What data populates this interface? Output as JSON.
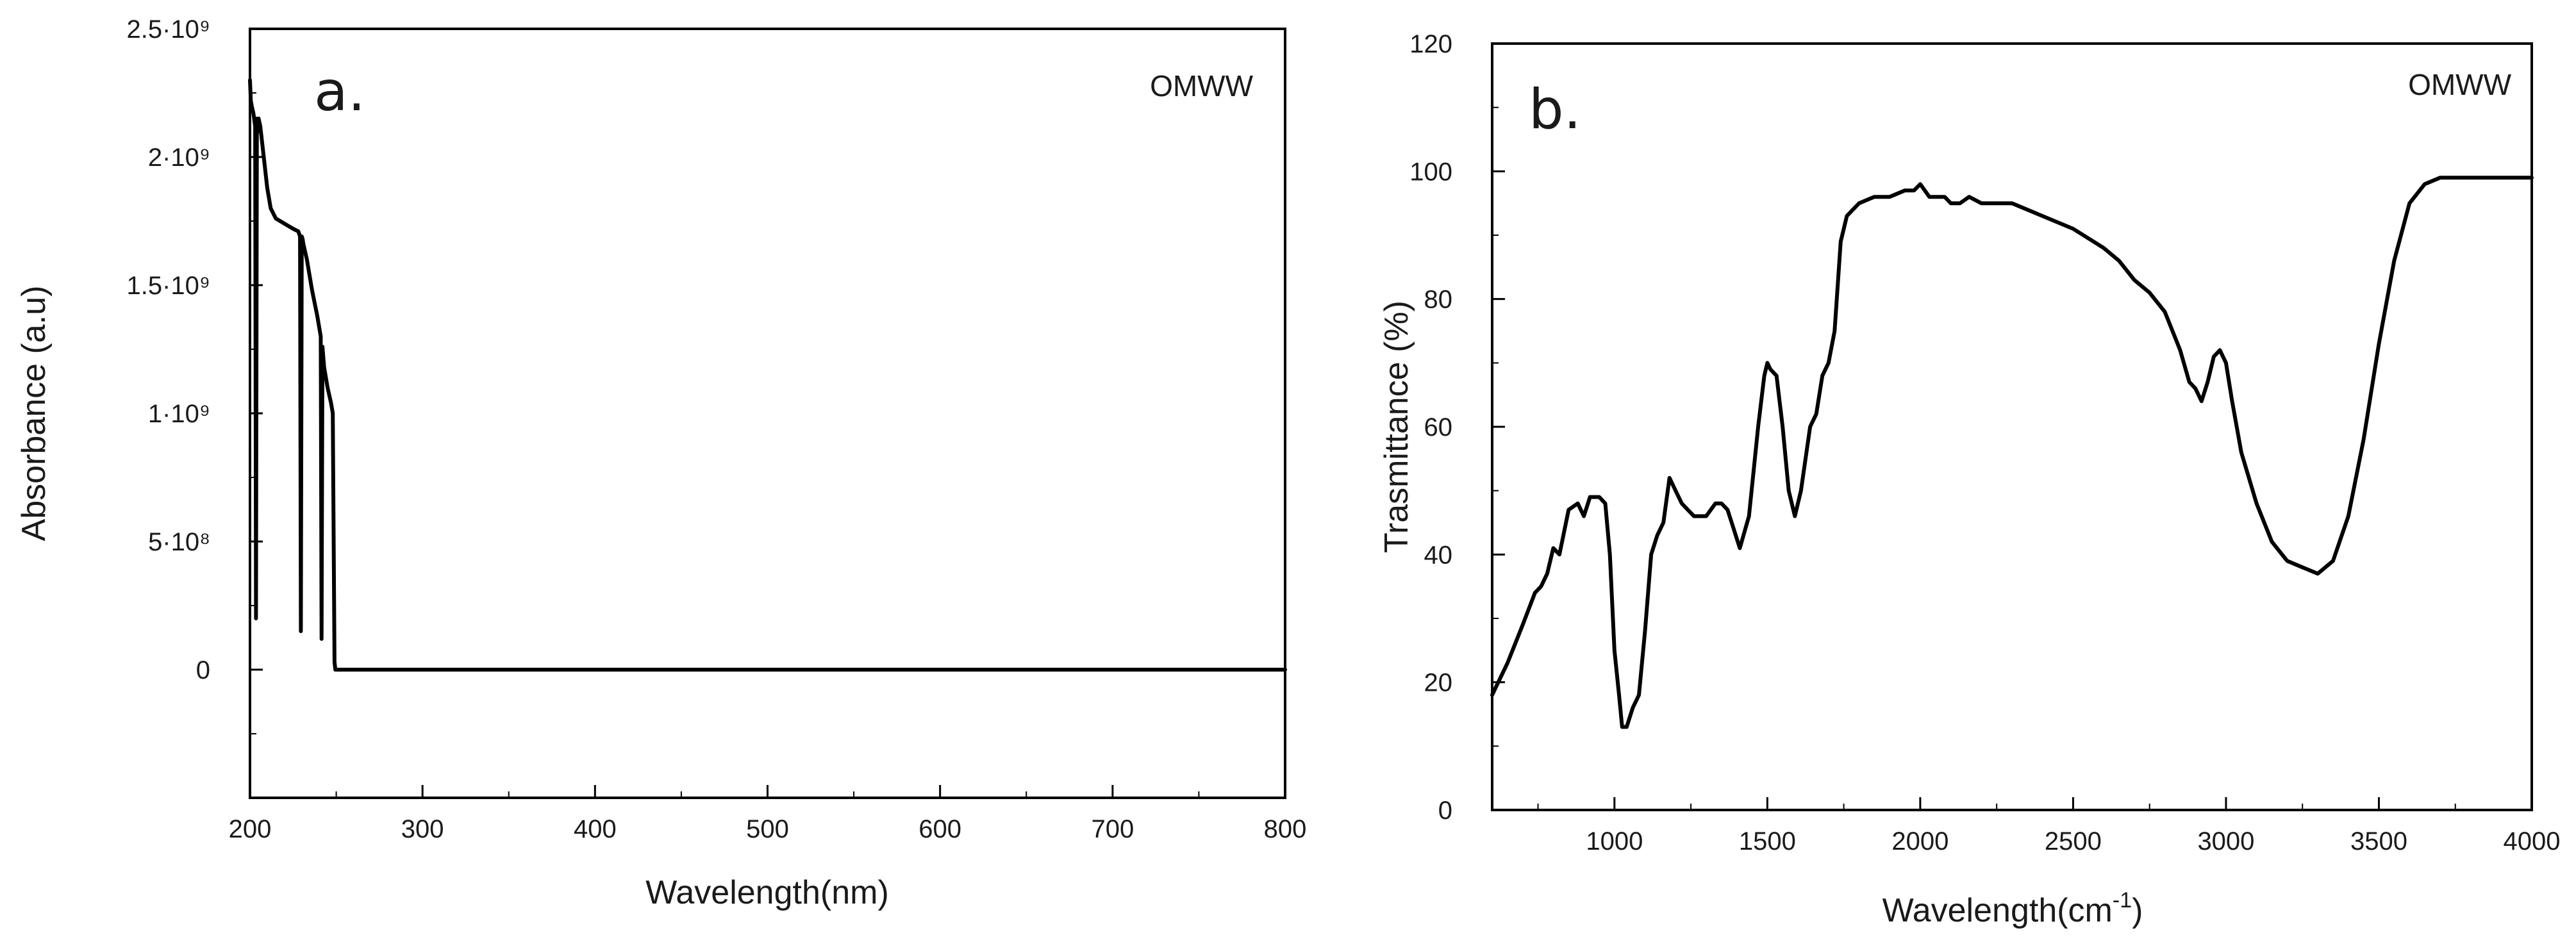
{
  "chart_data": [
    {
      "type": "line",
      "panel_label": "a.",
      "legend": "OMWW",
      "xlabel": "Wavelength(nm)",
      "ylabel": "Absorbance (a.u)",
      "xlim": [
        200,
        800
      ],
      "ylim": [
        -500000000,
        2500000000
      ],
      "grid": false,
      "x_ticks": [
        {
          "value": 200,
          "label": "200"
        },
        {
          "value": 300,
          "label": "300"
        },
        {
          "value": 400,
          "label": "400"
        },
        {
          "value": 500,
          "label": "500"
        },
        {
          "value": 600,
          "label": "600"
        },
        {
          "value": 700,
          "label": "700"
        },
        {
          "value": 800,
          "label": "800"
        }
      ],
      "y_ticks": [
        {
          "value": 0,
          "label": "0"
        },
        {
          "value": 500000000,
          "label": "5·10⁸"
        },
        {
          "value": 1000000000,
          "label": "1·10⁹"
        },
        {
          "value": 1500000000,
          "label": "1.5·10⁹"
        },
        {
          "value": 2000000000,
          "label": "2·10⁹"
        },
        {
          "value": 2500000000,
          "label": "2.5·10⁹"
        }
      ],
      "series": [
        {
          "name": "OMWW",
          "x": [
            200,
            200.5,
            201,
            202,
            203,
            203.5,
            204,
            204.5,
            205,
            206,
            208,
            210,
            212,
            215,
            220,
            225,
            228,
            229,
            229.5,
            230,
            230.5,
            231,
            233,
            236,
            239,
            241,
            241.5,
            242,
            242.5,
            243,
            245,
            247,
            248,
            249,
            249.5,
            250,
            260,
            300,
            400,
            500,
            600,
            700,
            800
          ],
          "y": [
            2300000000,
            2220000000,
            2200000000,
            2170000000,
            2120000000,
            200000000,
            2150000000,
            2100000000,
            2150000000,
            2120000000,
            2000000000,
            1880000000,
            1800000000,
            1760000000,
            1740000000,
            1720000000,
            1710000000,
            1690000000,
            150000000,
            1690000000,
            1680000000,
            1660000000,
            1600000000,
            1480000000,
            1380000000,
            1300000000,
            120000000,
            1260000000,
            1220000000,
            1180000000,
            1100000000,
            1040000000,
            1000000000,
            30000000,
            0,
            0,
            0,
            0,
            0,
            0,
            0,
            0,
            0
          ]
        }
      ]
    },
    {
      "type": "line",
      "panel_label": "b.",
      "legend": "OMWW",
      "xlabel": "Wavelength(cm",
      "xlabel_sup": "-1",
      "xlabel_close": ")",
      "ylabel": "Trasmittance (%)",
      "xlim": [
        600,
        4000
      ],
      "ylim": [
        0,
        120
      ],
      "grid": false,
      "x_ticks": [
        {
          "value": 1000,
          "label": "1000"
        },
        {
          "value": 1500,
          "label": "1500"
        },
        {
          "value": 2000,
          "label": "2000"
        },
        {
          "value": 2500,
          "label": "2500"
        },
        {
          "value": 3000,
          "label": "3000"
        },
        {
          "value": 3500,
          "label": "3500"
        },
        {
          "value": 4000,
          "label": "4000"
        }
      ],
      "y_ticks": [
        {
          "value": 0,
          "label": "0"
        },
        {
          "value": 20,
          "label": "20"
        },
        {
          "value": 40,
          "label": "40"
        },
        {
          "value": 60,
          "label": "60"
        },
        {
          "value": 80,
          "label": "80"
        },
        {
          "value": 100,
          "label": "100"
        },
        {
          "value": 120,
          "label": "120"
        }
      ],
      "series": [
        {
          "name": "OMWW",
          "x": [
            600,
            620,
            650,
            700,
            740,
            760,
            780,
            800,
            820,
            850,
            880,
            900,
            920,
            950,
            970,
            985,
            1000,
            1015,
            1025,
            1040,
            1060,
            1080,
            1100,
            1120,
            1140,
            1160,
            1180,
            1200,
            1220,
            1240,
            1260,
            1300,
            1330,
            1350,
            1370,
            1390,
            1410,
            1440,
            1470,
            1490,
            1500,
            1510,
            1530,
            1550,
            1570,
            1590,
            1610,
            1640,
            1660,
            1680,
            1700,
            1720,
            1740,
            1760,
            1780,
            1800,
            1850,
            1900,
            1950,
            1980,
            2000,
            2030,
            2060,
            2080,
            2100,
            2130,
            2160,
            2200,
            2300,
            2400,
            2500,
            2600,
            2650,
            2700,
            2750,
            2800,
            2850,
            2880,
            2900,
            2920,
            2940,
            2960,
            2980,
            3000,
            3020,
            3050,
            3100,
            3150,
            3200,
            3250,
            3300,
            3350,
            3400,
            3450,
            3500,
            3550,
            3600,
            3650,
            3700,
            3750,
            3800,
            4000
          ],
          "y": [
            18,
            20,
            23,
            29,
            34,
            35,
            37,
            41,
            40,
            47,
            48,
            46,
            49,
            49,
            48,
            40,
            25,
            18,
            13,
            13,
            16,
            18,
            28,
            40,
            43,
            45,
            52,
            50,
            48,
            47,
            46,
            46,
            48,
            48,
            47,
            44,
            41,
            46,
            60,
            68,
            70,
            69,
            68,
            60,
            50,
            46,
            50,
            60,
            62,
            68,
            70,
            75,
            89,
            93,
            94,
            95,
            96,
            96,
            97,
            97,
            98,
            96,
            96,
            96,
            95,
            95,
            96,
            95,
            95,
            93,
            91,
            88,
            86,
            83,
            81,
            78,
            72,
            67,
            66,
            64,
            67,
            71,
            72,
            70,
            64,
            56,
            48,
            42,
            39,
            38,
            37,
            39,
            46,
            58,
            73,
            86,
            95,
            98,
            99,
            99,
            99,
            99
          ]
        }
      ]
    }
  ]
}
